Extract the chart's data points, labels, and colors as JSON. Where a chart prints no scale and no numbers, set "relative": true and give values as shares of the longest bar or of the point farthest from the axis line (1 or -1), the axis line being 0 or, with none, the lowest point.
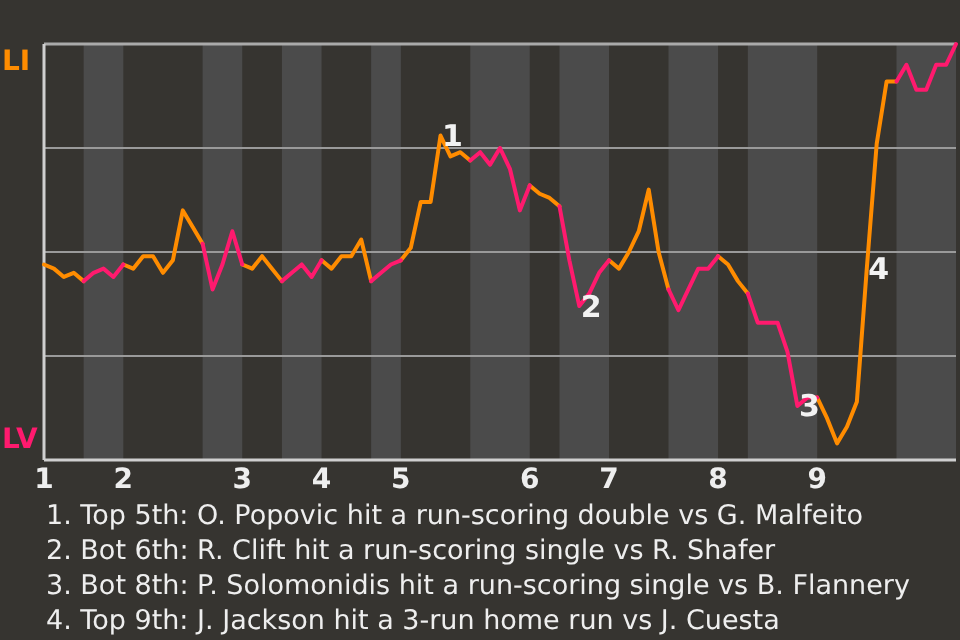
{
  "chart_data": {
    "type": "line",
    "relative": true,
    "grid": true,
    "legend": "left",
    "categories": [
      "1",
      null,
      null,
      null,
      null,
      null,
      null,
      null,
      "2",
      null,
      null,
      null,
      null,
      null,
      null,
      null,
      null,
      null,
      null,
      null,
      "3",
      null,
      null,
      null,
      null,
      null,
      null,
      null,
      "4",
      null,
      null,
      null,
      null,
      null,
      null,
      null,
      "5",
      null,
      null,
      null,
      null,
      null,
      null,
      null,
      null,
      null,
      null,
      null,
      null,
      "6",
      null,
      null,
      null,
      null,
      null,
      null,
      null,
      "7",
      null,
      null,
      null,
      null,
      null,
      null,
      null,
      null,
      null,
      null,
      "8",
      null,
      null,
      null,
      null,
      null,
      null,
      null,
      null,
      null,
      "9",
      null,
      null,
      null,
      null,
      null,
      null,
      null,
      null,
      null,
      null,
      null,
      null,
      null,
      null
    ],
    "series": [
      {
        "name": "LI",
        "color": "#ff8c00",
        "values": [
          0.47,
          0.46,
          0.44,
          0.45,
          0.43,
          null,
          null,
          null,
          0.47,
          0.46,
          0.49,
          0.49,
          0.45,
          0.48,
          0.6,
          0.56,
          0.52,
          null,
          null,
          null,
          0.47,
          0.46,
          0.49,
          0.46,
          0.43,
          null,
          null,
          null,
          0.48,
          0.46,
          0.49,
          0.49,
          0.53,
          0.43,
          null,
          null,
          0.48,
          0.51,
          0.62,
          0.62,
          0.78,
          0.73,
          0.74,
          0.72,
          null,
          null,
          null,
          null,
          null,
          0.66,
          0.64,
          0.63,
          0.61,
          null,
          null,
          null,
          null,
          0.48,
          0.46,
          0.5,
          0.55,
          0.65,
          0.5,
          0.41,
          null,
          null,
          null,
          null,
          0.49,
          0.47,
          0.43,
          0.4,
          null,
          null,
          null,
          null,
          null,
          null,
          0.15,
          0.1,
          0.04,
          0.08,
          0.14,
          0.46,
          0.76,
          0.91,
          0.91,
          null,
          null,
          null,
          null,
          null,
          null
        ]
      },
      {
        "name": "LV",
        "color": "#ff1a6e",
        "values": [
          null,
          null,
          null,
          null,
          0.43,
          0.45,
          0.46,
          0.44,
          0.47,
          null,
          null,
          null,
          null,
          null,
          null,
          null,
          0.52,
          0.41,
          0.47,
          0.55,
          0.47,
          null,
          null,
          null,
          0.43,
          0.45,
          0.47,
          0.44,
          0.48,
          null,
          null,
          null,
          null,
          0.43,
          0.45,
          0.47,
          0.48,
          null,
          null,
          null,
          null,
          null,
          null,
          0.72,
          0.74,
          0.71,
          0.75,
          0.7,
          0.6,
          0.66,
          null,
          null,
          0.61,
          0.48,
          0.37,
          0.4,
          0.45,
          0.48,
          null,
          null,
          null,
          null,
          null,
          0.41,
          0.36,
          0.41,
          0.46,
          0.46,
          0.49,
          null,
          null,
          0.4,
          0.33,
          0.33,
          0.33,
          0.26,
          0.13,
          0.15,
          0.15,
          null,
          null,
          null,
          null,
          null,
          null,
          null,
          0.91,
          0.95,
          0.89,
          0.89,
          0.95,
          0.95,
          1.0
        ]
      }
    ],
    "annotations": [
      {
        "text": "1",
        "y": 0.78
      },
      {
        "text": "2",
        "y": 0.37
      },
      {
        "text": "3",
        "y": 0.13
      },
      {
        "text": "4",
        "y": 0.46
      },
      "1. Top 5th: O. Popovic hit a run-scoring double vs G. Malfeito",
      "2. Bot 6th: R. Clift hit a run-scoring single vs R. Shafer",
      "3. Bot 8th: P. Solomonidis hit a run-scoring single vs B. Flannery",
      "4. Top 9th: J. Jackson hit a 3-run home run vs J. Cuesta"
    ]
  }
}
